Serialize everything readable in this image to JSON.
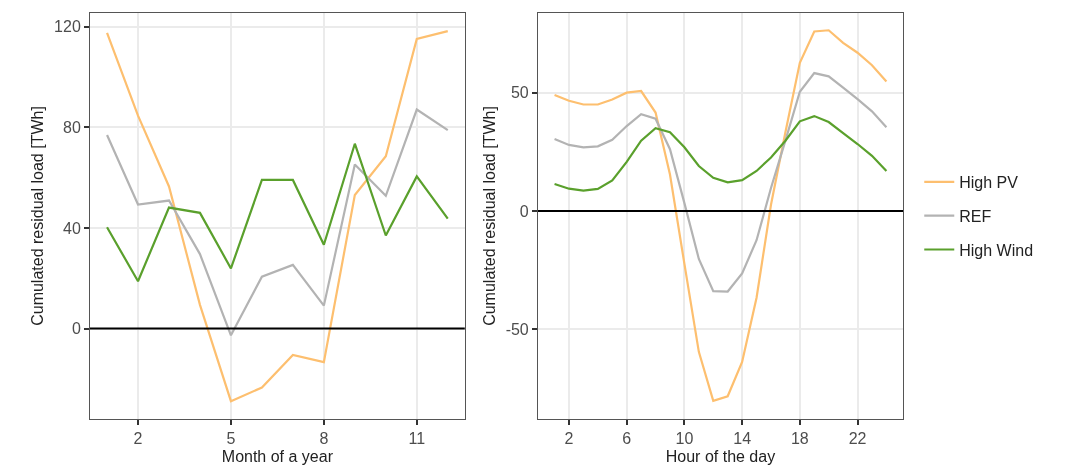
{
  "chart_data": [
    {
      "type": "line",
      "xlabel": "Month of a year",
      "ylabel": "Cumulated residual load [TWh]",
      "x": [
        1,
        2,
        3,
        4,
        5,
        6,
        7,
        8,
        9,
        10,
        11,
        12
      ],
      "xlim": [
        0.45,
        12.55
      ],
      "xticks": [
        2,
        5,
        8,
        11
      ],
      "ylim": [
        -36,
        125.5
      ],
      "yticks": [
        0,
        40,
        80,
        120
      ],
      "grid": true,
      "legend": "right",
      "line_style": "solid",
      "marker": "none",
      "ref_lines": [
        {
          "axis": "y",
          "value": 0,
          "color": "#000000"
        }
      ],
      "series": [
        {
          "name": "High PV",
          "color": "#fdbf6f",
          "values": [
            117.6,
            84.7,
            56.5,
            9.4,
            -28.9,
            -23.5,
            -10.5,
            -13.4,
            53.1,
            68.5,
            115.2,
            118.3
          ]
        },
        {
          "name": "REF",
          "color": "#b3b3b3",
          "values": [
            77,
            49.3,
            50.9,
            29.6,
            -2.7,
            20.6,
            25.3,
            9.1,
            65.2,
            52.8,
            87.1,
            78.9
          ]
        },
        {
          "name": "High Wind",
          "color": "#5aa02c",
          "values": [
            40.3,
            18.8,
            48.1,
            46,
            23.9,
            59.1,
            59.1,
            33.3,
            73.5,
            37,
            60.5,
            43.7
          ]
        }
      ]
    },
    {
      "type": "line",
      "xlabel": "Hour of the day",
      "ylabel": "Cumulated residual load [TWh]",
      "x": [
        1,
        2,
        3,
        4,
        5,
        6,
        7,
        8,
        9,
        10,
        11,
        12,
        13,
        14,
        15,
        16,
        17,
        18,
        19,
        20,
        21,
        22,
        23,
        24
      ],
      "xlim": [
        -0.15,
        25.15
      ],
      "xticks": [
        2,
        6,
        10,
        14,
        18,
        22
      ],
      "ylim": [
        -88,
        83.7
      ],
      "yticks": [
        -50,
        0,
        50
      ],
      "grid": true,
      "line_style": "solid",
      "marker": "none",
      "ref_lines": [
        {
          "axis": "y",
          "value": 0,
          "color": "#000000"
        }
      ],
      "series": [
        {
          "color": "#fdbf6f",
          "values": [
            49,
            46.6,
            45,
            45,
            47.1,
            50,
            50.7,
            41.6,
            15.4,
            -22.4,
            -59.6,
            -80.3,
            -78.4,
            -63.9,
            -36.7,
            2.6,
            33.3,
            62.6,
            75.9,
            76.4,
            71.1,
            66.9,
            61.6,
            54.7
          ]
        },
        {
          "color": "#b3b3b3",
          "values": [
            30.4,
            27.9,
            26.9,
            27.3,
            30.1,
            35.9,
            40.9,
            39,
            26.1,
            3.3,
            -20.3,
            -33.9,
            -34.1,
            -26.4,
            -12.4,
            9.7,
            29.7,
            50.4,
            58.3,
            56.9,
            52.1,
            47.3,
            42.1,
            35.4
          ]
        },
        {
          "color": "#5aa02c",
          "values": [
            11.4,
            9.4,
            8.6,
            9.3,
            12.9,
            20.7,
            29.7,
            35,
            33.3,
            26.9,
            19,
            14,
            12.1,
            13,
            16.9,
            22.6,
            29.7,
            37.9,
            40.1,
            37.6,
            32.9,
            28.3,
            23.3,
            16.9
          ]
        }
      ]
    }
  ]
}
